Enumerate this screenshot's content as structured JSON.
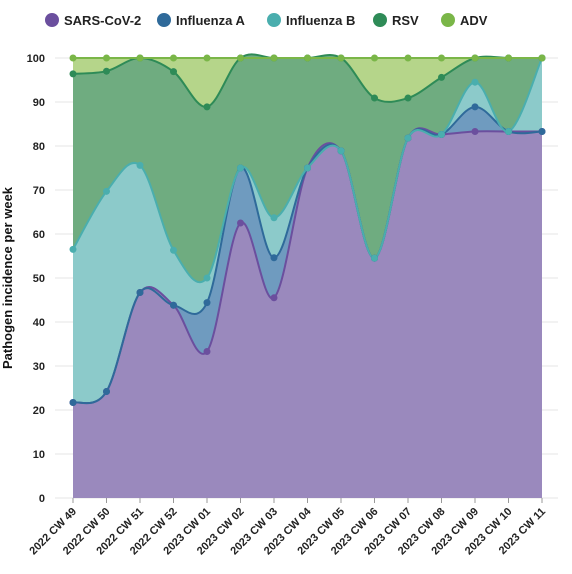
{
  "chart_data": {
    "type": "area",
    "stacked": true,
    "ylabel": "Pathogen incidence per week",
    "xlabel": "",
    "ylim": [
      0,
      100
    ],
    "yticks": [
      0,
      10,
      20,
      30,
      40,
      50,
      60,
      70,
      80,
      90,
      100
    ],
    "grid": "horizontal",
    "legend_position": "top",
    "categories": [
      "2022 CW 49",
      "2022 CW 50",
      "2022 CW 51",
      "2022 CW 52",
      "2023 CW 01",
      "2023 CW 02",
      "2023 CW 03",
      "2023 CW 04",
      "2023 CW 05",
      "2023 CW 06",
      "2023 CW 07",
      "2023 CW 08",
      "2023 CW 09",
      "2023 CW 10",
      "2023 CW 11"
    ],
    "series": [
      {
        "name": "SARS-CoV-2",
        "color": "#6b4f9e",
        "fill": "#9a89bd",
        "values": [
          21.7,
          24.2,
          46.7,
          43.8,
          33.3,
          62.5,
          45.5,
          75,
          78.9,
          54.5,
          81.8,
          82.6,
          83.3,
          83.3,
          83.3
        ]
      },
      {
        "name": "Influenza A",
        "color": "#2f6a9a",
        "fill": "#6f9bbf",
        "values": [
          0,
          0,
          0,
          0,
          11.1,
          12.5,
          9.1,
          0,
          0,
          0,
          0,
          0,
          5.6,
          0,
          0
        ]
      },
      {
        "name": "Influenza B",
        "color": "#4aaeae",
        "fill": "#8ccaca",
        "values": [
          34.8,
          45.5,
          28.9,
          12.5,
          5.6,
          0,
          9.1,
          0,
          0,
          0,
          0,
          0,
          5.6,
          0,
          16.7
        ]
      },
      {
        "name": "RSV",
        "color": "#2e8b57",
        "fill": "#6fac80",
        "values": [
          39.9,
          27.3,
          24.4,
          40.6,
          38.9,
          25,
          36.3,
          25,
          21.1,
          36.4,
          9.1,
          13,
          5.5,
          16.7,
          0
        ]
      },
      {
        "name": "ADV",
        "color": "#7ab648",
        "fill": "#b5d58a",
        "values": [
          3.6,
          3,
          0,
          3.1,
          11.1,
          0,
          0,
          0,
          0,
          9.1,
          9.1,
          4.4,
          0,
          0,
          0
        ]
      }
    ]
  }
}
